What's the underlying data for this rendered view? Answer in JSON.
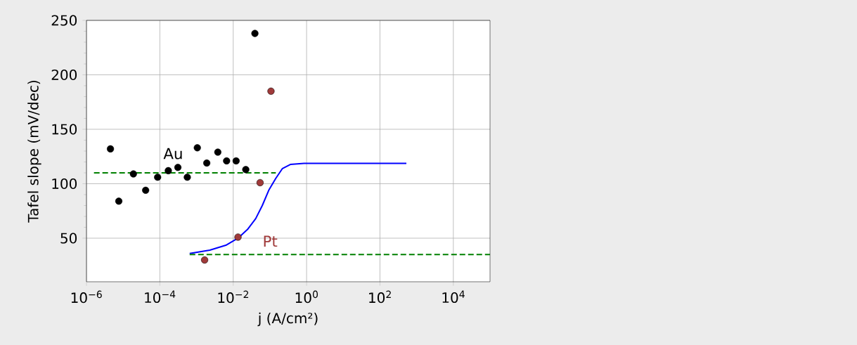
{
  "chart_data": {
    "type": "scatter",
    "xlabel": "j (A/cm²)",
    "ylabel": "Tafel slope (mV/dec)",
    "log": "x",
    "grid": true,
    "xlim": [
      1e-06,
      100000.0
    ],
    "ylim": [
      10,
      250
    ],
    "xticks": [
      {
        "value": 1e-06,
        "label": "10$^{−6}$"
      },
      {
        "value": 0.0001,
        "label": "10$^{−4}$"
      },
      {
        "value": 0.01,
        "label": "10$^{−2}$"
      },
      {
        "value": 1,
        "label": "10$^{0}$"
      },
      {
        "value": 100,
        "label": "10$^{2}$"
      },
      {
        "value": 10000,
        "label": "10$^{4}$"
      }
    ],
    "yticks": [
      50,
      100,
      150,
      200,
      250
    ],
    "series": [
      {
        "marker": "circle",
        "color": "#000000",
        "x": [
          4.5e-06,
          7.6e-06,
          1.9e-05,
          4.1e-05,
          8.7e-05,
          0.00017,
          0.00031,
          0.00056,
          0.00105,
          0.0019,
          0.0038,
          0.0066,
          0.012,
          0.022,
          0.039
        ],
        "values": [
          132,
          84,
          109,
          94,
          106,
          112,
          115,
          106,
          133,
          119,
          129,
          121,
          121,
          113,
          238
        ]
      },
      {
        "marker": "circle",
        "color": "#a03a3a",
        "x": [
          0.00166,
          0.0135,
          0.054,
          0.107
        ],
        "values": [
          30,
          51,
          101,
          185
        ]
      },
      {
        "type": "line",
        "marker": "none",
        "color": "#0000ff",
        "line_style": "solid",
        "x": [
          0.00065,
          0.0023,
          0.0063,
          0.0135,
          0.0245,
          0.041,
          0.062,
          0.093,
          0.145,
          0.22,
          0.36,
          0.85,
          525
        ],
        "values": [
          36,
          39,
          43.5,
          50,
          58,
          68,
          80,
          94,
          105,
          114,
          117.7,
          118.7,
          118.7
        ]
      },
      {
        "type": "line",
        "marker": "none",
        "color": "#008000",
        "line_style": "dashed",
        "x": [
          1.6e-06,
          0.145
        ],
        "values": [
          110,
          110
        ]
      },
      {
        "type": "line",
        "marker": "none",
        "color": "#008000",
        "line_style": "dashed",
        "x": [
          0.00065,
          100000.0
        ],
        "values": [
          35,
          35
        ]
      }
    ],
    "annotations": [
      "Au",
      "Pt"
    ]
  }
}
